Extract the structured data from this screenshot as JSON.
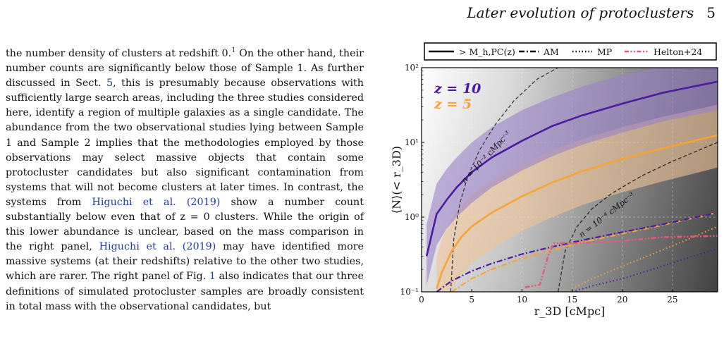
{
  "header": {
    "title": "Later evolution of protoclusters",
    "page": "5"
  },
  "text": {
    "p1": "the number density of clusters at redshift 0.",
    "fn": "1",
    "p2": " On the other hand, their number counts are significantly below those of Sample 1. As further discussed in Sect. ",
    "sect": "5",
    "p3": ", this is presumably because observations with sufficiently large search areas, including the three studies considered here, identify a region of multiple galaxies as a single candidate. The abundance from the two observational studies lying between Sample 1 and Sample 2 implies that the methodologies employed by those observations may select massive objects that contain some protocluster candidates but also significant contamination from systems that will not become clusters at later times. In contrast, the systems from ",
    "ref1": "Higuchi et al. (2019)",
    "p4": " show a number count substantially below even that of z = 0 clusters. While the origin of this lower abundance is unclear, based on the mass comparison in the right panel, ",
    "ref2": "Higuchi et al. (2019)",
    "p5": " may have identified more massive systems (at their redshifts) relative to the other two studies, which are rarer. The right panel of Fig. ",
    "fig": "1",
    "p6": " also indicates that our three definitions of simulated protocluster samples are broadly consistent in total mass with the observational candidates, but"
  },
  "chart_data": {
    "type": "line",
    "xlabel": "r_3D [cMpc]",
    "ylabel": "⟨N⟩(< r_3D)",
    "xlim": [
      0,
      29.5
    ],
    "ylim": [
      0.1,
      100
    ],
    "yscale": "log",
    "xticks": [
      0,
      5,
      10,
      15,
      20,
      25
    ],
    "yticks": [
      0.1,
      1,
      10,
      100
    ],
    "ytick_labels": [
      "10⁻¹",
      "10⁰",
      "10¹",
      "10²"
    ],
    "grid": true,
    "legend": {
      "placement": "top, outside",
      "entries": [
        {
          "label": "> M_h,PC(z)",
          "style": "solid",
          "color": "#000000"
        },
        {
          "label": "AM",
          "style": "dashdot",
          "color": "#000000"
        },
        {
          "label": "MP",
          "style": "dotted",
          "color": "#000000"
        },
        {
          "label": "Helton+24",
          "style": "dashdotdot",
          "color": "#e05c78"
        }
      ]
    },
    "redshift_labels": [
      {
        "text": "z = 10",
        "color": "#4b1c9e"
      },
      {
        "text": "z = 5",
        "color": "#f5a43a"
      }
    ],
    "annotations": [
      {
        "text": "n = 10⁻² cMpc⁻³"
      },
      {
        "text": "n = 10⁻⁴ cMpc⁻³"
      }
    ],
    "colors": {
      "z10": "#4b1c9e",
      "z10_band": "#9b82c9",
      "z5": "#f5a43a",
      "z5_band": "#efc394",
      "helton": "#e05c78"
    },
    "series": [
      {
        "key": "z10_solid",
        "x": [
          0.5,
          1.5,
          2.5,
          3.5,
          5,
          7,
          10,
          13,
          16,
          20,
          24,
          29.5
        ],
        "y": [
          0.3,
          1.1,
          1.7,
          2.5,
          4.0,
          6.3,
          10.5,
          16.5,
          23,
          33,
          46,
          65
        ]
      },
      {
        "key": "z10_band_upper",
        "x": [
          0.5,
          1.5,
          2.5,
          3.5,
          5,
          7,
          10,
          13,
          16,
          20,
          24,
          29.5
        ],
        "y": [
          0.8,
          2.8,
          4.4,
          6.3,
          10,
          16,
          27,
          40,
          56,
          80,
          105,
          140
        ]
      },
      {
        "key": "z10_band_lower",
        "x": [
          0.5,
          1.5,
          2.5,
          3.5,
          5,
          7,
          10,
          13,
          16,
          20,
          24,
          29.5
        ],
        "y": [
          0.12,
          0.42,
          0.7,
          1.0,
          1.55,
          2.5,
          4.2,
          6.5,
          9.3,
          13.5,
          19,
          27
        ]
      },
      {
        "key": "z5_solid",
        "x": [
          1.5,
          2,
          3,
          4,
          5,
          7,
          10,
          13,
          16,
          20,
          24,
          29.5
        ],
        "y": [
          0.11,
          0.18,
          0.35,
          0.55,
          0.75,
          1.15,
          1.9,
          2.9,
          4.1,
          6.0,
          8.3,
          12.5
        ]
      },
      {
        "key": "z5_band_upper",
        "x": [
          1.5,
          2,
          3,
          4,
          5,
          7,
          10,
          13,
          16,
          20,
          24,
          29.5
        ],
        "y": [
          0.3,
          0.5,
          0.95,
          1.45,
          2.0,
          3.1,
          5.2,
          7.8,
          11,
          16,
          22,
          32
        ]
      },
      {
        "key": "z5_band_lower",
        "x": [
          1.5,
          2,
          3,
          4,
          5,
          7,
          10,
          13,
          16,
          20,
          24,
          29.5
        ],
        "y": [
          0.1,
          0.1,
          0.11,
          0.17,
          0.24,
          0.38,
          0.65,
          1.0,
          1.45,
          2.15,
          3.0,
          4.6
        ]
      },
      {
        "key": "z10_AM",
        "x": [
          1.5,
          3,
          5,
          7,
          10,
          13,
          16,
          20,
          24,
          29.5
        ],
        "y": [
          0.1,
          0.14,
          0.19,
          0.24,
          0.32,
          0.4,
          0.49,
          0.63,
          0.8,
          1.15
        ]
      },
      {
        "key": "z5_AM",
        "x": [
          3,
          5,
          7,
          10,
          13,
          16,
          20,
          24,
          29.5
        ],
        "y": [
          0.1,
          0.15,
          0.2,
          0.28,
          0.36,
          0.46,
          0.6,
          0.78,
          1.15
        ]
      },
      {
        "key": "z10_MP",
        "x": [
          15,
          17,
          20,
          23,
          26,
          29.5
        ],
        "y": [
          0.1,
          0.12,
          0.15,
          0.2,
          0.27,
          0.38
        ]
      },
      {
        "key": "z5_MP",
        "x": [
          15,
          17,
          20,
          23,
          26,
          29.5
        ],
        "y": [
          0.11,
          0.15,
          0.22,
          0.32,
          0.47,
          0.75
        ]
      },
      {
        "key": "helton",
        "x": [
          10.3,
          11.8,
          12.6,
          13.2,
          14,
          16,
          20,
          24,
          29.5
        ],
        "y": [
          0.115,
          0.125,
          0.3,
          0.45,
          0.45,
          0.45,
          0.48,
          0.54,
          0.56
        ]
      },
      {
        "key": "density_1e-2",
        "x": [
          2.9,
          3.2,
          3.8,
          4.6,
          5.8,
          7.3,
          9.2,
          11.5,
          13.6
        ],
        "y": [
          0.1,
          0.5,
          1.5,
          3.5,
          8,
          17,
          36,
          70,
          100
        ]
      },
      {
        "key": "density_1e-4",
        "x": [
          13.6,
          14.3,
          15.5,
          17,
          19,
          22,
          25,
          29.5
        ],
        "y": [
          0.1,
          0.35,
          0.75,
          1.3,
          2.1,
          3.6,
          5.6,
          10
        ]
      }
    ]
  }
}
